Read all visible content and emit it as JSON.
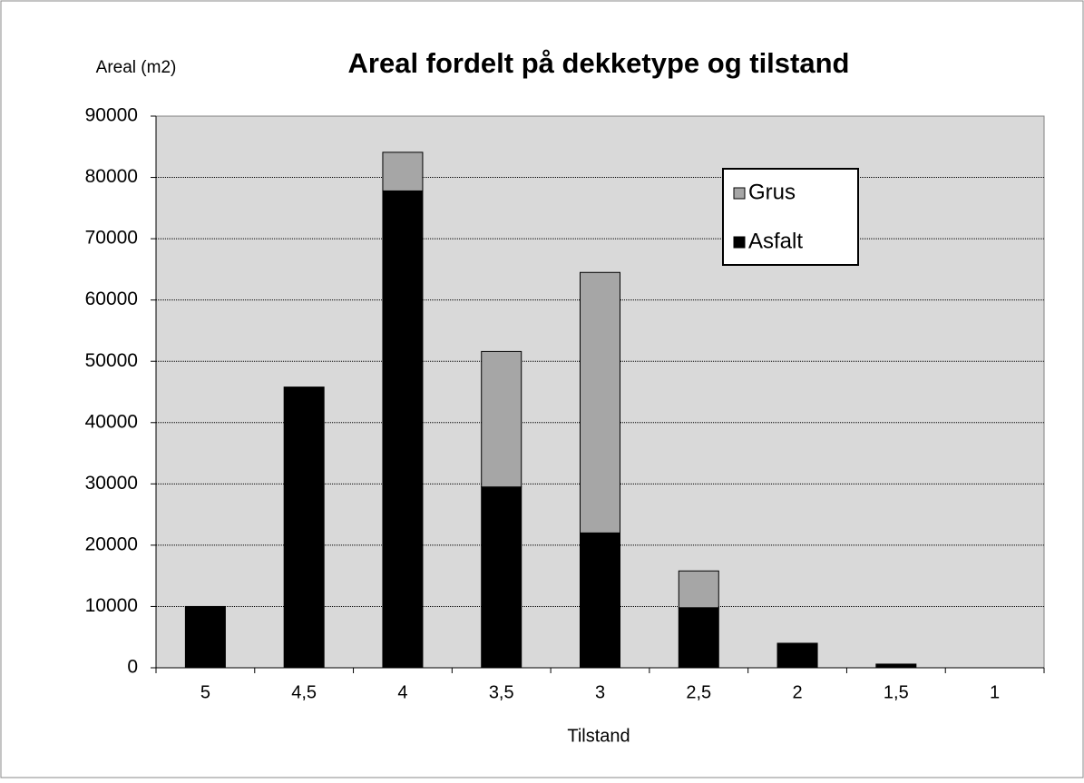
{
  "chart_data": {
    "type": "stacked_bar",
    "title": "Areal fordelt på dekketype og tilstand",
    "y_label": "Areal (m2)",
    "x_label": "Tilstand",
    "categories": [
      "5",
      "4,5",
      "4",
      "3,5",
      "3",
      "2,5",
      "2",
      "1,5",
      "1"
    ],
    "series": [
      {
        "name": "Asfalt",
        "color": "#000000",
        "values": [
          10000,
          45800,
          77800,
          29500,
          22000,
          9800,
          4000,
          600,
          0
        ]
      },
      {
        "name": "Grus",
        "color": "#a6a6a6",
        "values": [
          0,
          0,
          6300,
          22100,
          42500,
          6000,
          0,
          0,
          0
        ]
      }
    ],
    "ylim": [
      0,
      90000
    ],
    "yticks": [
      0,
      10000,
      20000,
      30000,
      40000,
      50000,
      60000,
      70000,
      80000,
      90000
    ],
    "grid": true,
    "legend": "upper right"
  }
}
